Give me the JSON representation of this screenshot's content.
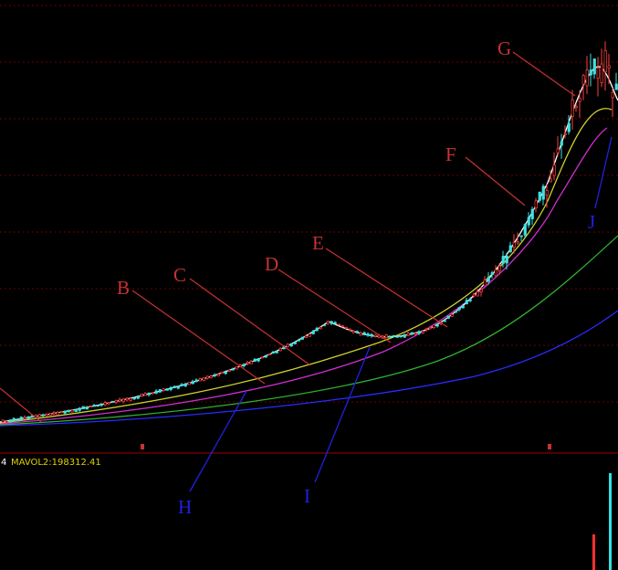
{
  "annotations": {
    "top": [
      "B",
      "C",
      "D",
      "E",
      "F",
      "G"
    ],
    "bottom": [
      "H",
      "I",
      "J"
    ]
  },
  "indicator": {
    "prefix": "4",
    "mavol2": "MAVOL2:198312.41"
  }
}
